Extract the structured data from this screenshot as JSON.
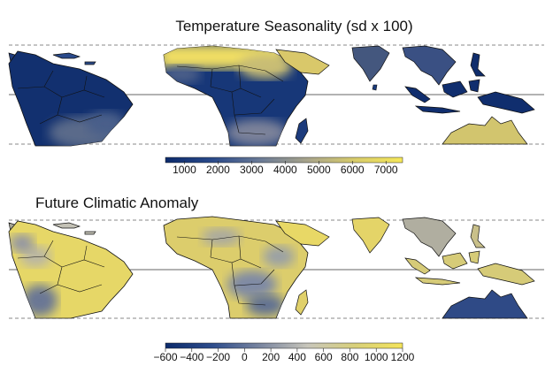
{
  "panels": [
    {
      "title": "Temperature Seasonality (sd x 100)",
      "colorbar": {
        "stops": [
          "#0b2a6b",
          "#2a4a8a",
          "#6a7a96",
          "#a8a48a",
          "#d8cc6a",
          "#f6e85a"
        ],
        "ticks": [
          "1000",
          "2000",
          "3000",
          "4000",
          "5000",
          "6000",
          "7000"
        ]
      }
    },
    {
      "title": "Future Climatic Anomaly",
      "colorbar": {
        "stops": [
          "#0b2a6b",
          "#2e4d8c",
          "#7a86a0",
          "#c8c6bb",
          "#d8d07a",
          "#f4e45a"
        ],
        "ticks": [
          "−600",
          "−400",
          "−200",
          "0",
          "200",
          "400",
          "600",
          "800",
          "1000",
          "1200"
        ]
      }
    }
  ]
}
